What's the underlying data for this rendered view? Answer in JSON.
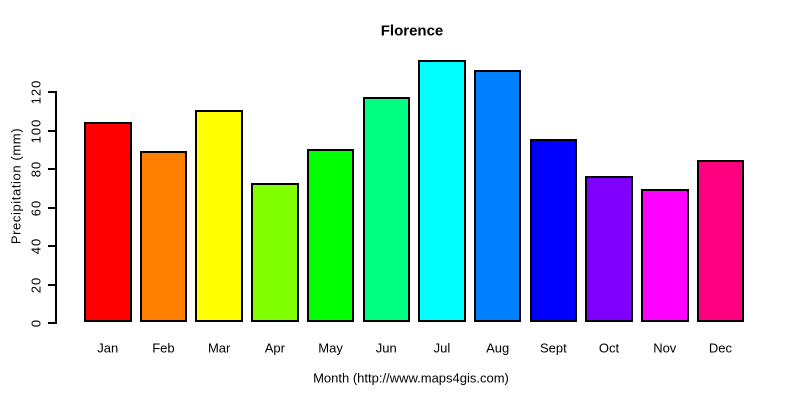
{
  "chart_data": {
    "type": "bar",
    "title": "Florence",
    "xlabel": "Month (http://www.maps4gis.com)",
    "ylabel": "Precipitation (mm)",
    "categories": [
      "Jan",
      "Feb",
      "Mar",
      "Apr",
      "May",
      "Jun",
      "Jul",
      "Aug",
      "Sept",
      "Oct",
      "Nov",
      "Dec"
    ],
    "values": [
      104,
      89,
      110,
      72,
      90,
      117,
      136,
      131,
      95,
      76,
      69,
      84
    ],
    "colors": [
      "#FF0000",
      "#FF8000",
      "#FFFF00",
      "#80FF00",
      "#00FF00",
      "#00FF80",
      "#00FFFF",
      "#0080FF",
      "#0000FF",
      "#8000FF",
      "#FF00FF",
      "#FF0080"
    ],
    "bar_border_color": "#000000",
    "axis_color": "#000000",
    "background_color": "#FFFFFF",
    "yticks": [
      0,
      20,
      40,
      60,
      80,
      100,
      120
    ],
    "ylim": [
      0,
      140
    ],
    "grid": false,
    "legend": "none"
  }
}
